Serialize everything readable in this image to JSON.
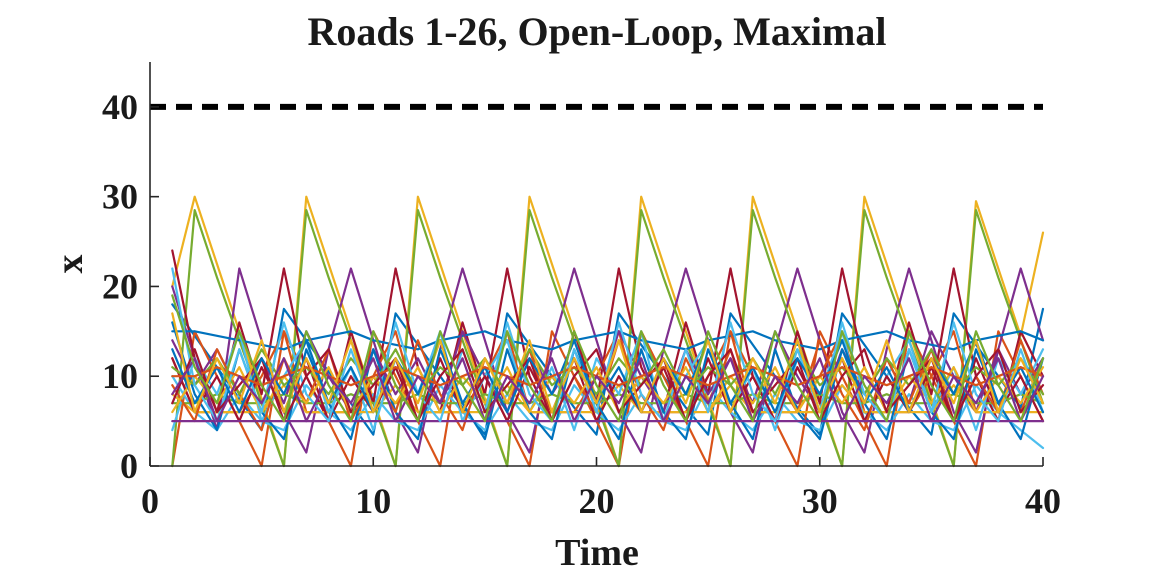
{
  "chart_data": {
    "type": "line",
    "title": "Roads 1-26, Open-Loop, Maximal",
    "xlabel": "Time",
    "ylabel": "x",
    "xlim": [
      0,
      40
    ],
    "ylim": [
      0,
      45
    ],
    "xticks": [
      0,
      10,
      20,
      30,
      40
    ],
    "yticks": [
      0,
      10,
      20,
      30,
      40
    ],
    "grid": false,
    "legend": "none",
    "threshold": {
      "y": 40,
      "x": [
        0,
        40
      ],
      "color": "#000000",
      "style": "dashed"
    },
    "palette": [
      "#0072BD",
      "#D95319",
      "#EDB120",
      "#7E2F8E",
      "#77AC30",
      "#4DBEEE",
      "#A2142F"
    ],
    "x": [
      1,
      2,
      3,
      4,
      5,
      6,
      7,
      8,
      9,
      10,
      11,
      12,
      13,
      14,
      15,
      16,
      17,
      18,
      19,
      20,
      21,
      22,
      23,
      24,
      25,
      26,
      27,
      28,
      29,
      30,
      31,
      32,
      33,
      34,
      35,
      36,
      37,
      38,
      39,
      40
    ],
    "series": [
      {
        "values": [
          18,
          14.5,
          11,
          7.5,
          4,
          17.5,
          14,
          10.5,
          7,
          3.5,
          17,
          13.5,
          10,
          6.5,
          3.5,
          17,
          13.5,
          10,
          6.5,
          3.5,
          17,
          13.5,
          10,
          6.5,
          3.5,
          17,
          13.5,
          10,
          6.5,
          3.5,
          17,
          13.5,
          10,
          6.5,
          3.5,
          17,
          13.5,
          10,
          6.5,
          17.5
        ]
      },
      {
        "values": [
          0,
          15,
          10,
          5,
          0,
          15,
          10,
          5,
          0,
          15,
          10,
          5,
          0,
          15,
          10,
          5,
          0,
          15,
          10,
          5,
          0,
          15,
          10,
          5,
          0,
          15,
          10,
          5,
          0,
          15,
          10,
          5,
          0,
          15,
          10,
          5,
          0,
          15,
          10,
          5
        ]
      },
      {
        "values": [
          20,
          30,
          22.5,
          15,
          7.5,
          0,
          30,
          22.5,
          15,
          7.5,
          0,
          30,
          22.5,
          15,
          7.5,
          0,
          30,
          22.5,
          15,
          7.5,
          0,
          30,
          22.5,
          15,
          7.5,
          0,
          30,
          22.5,
          15,
          7.5,
          0,
          30,
          22.5,
          15,
          7.5,
          0,
          29.5,
          22,
          14.5,
          26
        ]
      },
      {
        "values": [
          20,
          12,
          4,
          22,
          14,
          6,
          1.5,
          13,
          22,
          14,
          6,
          1.5,
          13,
          22,
          14,
          6,
          1.5,
          13,
          22,
          14,
          6,
          1.5,
          13,
          22,
          14,
          6,
          1.5,
          13,
          22,
          14,
          6,
          1.5,
          13,
          22,
          14,
          6,
          1.5,
          13,
          22,
          14
        ]
      },
      {
        "values": [
          0,
          28.5,
          21,
          14,
          7,
          0,
          28.5,
          21,
          14,
          7,
          0,
          28.5,
          21,
          14,
          7,
          0,
          28.5,
          21,
          14,
          7,
          0,
          28.5,
          21,
          14,
          7,
          0,
          28.5,
          21,
          14,
          7,
          0,
          28.5,
          21,
          14,
          7,
          0,
          28.5,
          21,
          14,
          7
        ]
      },
      {
        "values": [
          10,
          6,
          4,
          8,
          5,
          4,
          9,
          6,
          4,
          8,
          5,
          4,
          9,
          6,
          4,
          8,
          5,
          4,
          9,
          6,
          4,
          8,
          5,
          4,
          9,
          6,
          4,
          8,
          5,
          4,
          9,
          6,
          4,
          8,
          5,
          4,
          9,
          6,
          4,
          2
        ]
      },
      {
        "values": [
          24,
          12,
          6,
          16,
          8,
          22,
          10,
          5,
          15,
          7,
          22,
          11,
          6,
          16,
          8,
          22,
          10,
          5,
          15,
          7,
          22,
          11,
          6,
          16,
          8,
          22,
          10,
          5,
          15,
          7,
          22,
          11,
          6,
          16,
          8,
          22,
          10,
          5,
          15,
          10
        ]
      },
      {
        "values": [
          15,
          15,
          14.5,
          14,
          13.5,
          13,
          14,
          14.5,
          15,
          14,
          13.5,
          13,
          14,
          14.5,
          15,
          14,
          13.5,
          13,
          14,
          14.5,
          15,
          14,
          13.5,
          13,
          14,
          14.5,
          15,
          14,
          13.5,
          13,
          14,
          14.5,
          15,
          14,
          13.5,
          13,
          14,
          14.5,
          15,
          14
        ]
      },
      {
        "values": [
          12,
          6,
          6,
          6,
          10,
          15,
          6,
          6,
          6,
          10,
          15,
          6,
          6,
          6,
          10,
          15,
          6,
          6,
          6,
          10,
          15,
          6,
          6,
          6,
          10,
          15,
          6,
          6,
          6,
          10,
          15,
          6,
          6,
          6,
          10,
          15,
          6,
          6,
          6,
          12
        ]
      },
      {
        "values": [
          8,
          6,
          6,
          6,
          6,
          9,
          6,
          6,
          6,
          6,
          9,
          6,
          6,
          6,
          6,
          9,
          6,
          6,
          6,
          6,
          9,
          6,
          6,
          6,
          6,
          9,
          6,
          6,
          6,
          6,
          9,
          6,
          6,
          6,
          6,
          9,
          6,
          6,
          6,
          6
        ]
      },
      {
        "values": [
          14,
          9,
          13,
          8,
          12,
          7,
          15,
          10,
          6,
          13,
          8,
          12,
          7,
          15,
          10,
          6,
          13,
          8,
          12,
          7,
          15,
          10,
          6,
          13,
          8,
          12,
          7,
          15,
          10,
          6,
          13,
          8,
          12,
          7,
          15,
          10,
          6,
          13,
          8,
          12
        ]
      },
      {
        "values": [
          7,
          7,
          8,
          7,
          7,
          8,
          7,
          7,
          8,
          7,
          7,
          8,
          7,
          7,
          8,
          7,
          7,
          8,
          7,
          7,
          8,
          7,
          7,
          8,
          7,
          7,
          8,
          7,
          7,
          8,
          7,
          7,
          8,
          7,
          7,
          8,
          7,
          7,
          8,
          7
        ]
      },
      {
        "values": [
          4,
          12,
          8,
          15,
          5,
          10,
          14,
          6,
          11,
          4,
          12,
          8,
          15,
          5,
          10,
          14,
          6,
          11,
          4,
          12,
          8,
          15,
          5,
          10,
          14,
          6,
          11,
          4,
          12,
          8,
          15,
          5,
          10,
          14,
          6,
          11,
          4,
          12,
          8,
          13
        ]
      },
      {
        "values": [
          12,
          6,
          10,
          5,
          11,
          6,
          12,
          5,
          10,
          6,
          11,
          5,
          12,
          6,
          10,
          5,
          11,
          6,
          12,
          5,
          10,
          6,
          11,
          5,
          12,
          6,
          10,
          5,
          11,
          6,
          12,
          5,
          10,
          6,
          11,
          5,
          12,
          6,
          10,
          5
        ]
      },
      {
        "values": [
          16,
          8,
          4,
          13,
          6,
          3,
          13,
          7,
          3,
          13,
          6,
          3,
          13,
          7,
          3,
          13,
          6,
          3,
          13,
          7,
          3,
          13,
          6,
          3,
          13,
          7,
          3,
          13,
          6,
          3,
          13,
          7,
          3,
          13,
          6,
          3,
          13,
          7,
          3,
          12
        ]
      },
      {
        "values": [
          9,
          5,
          13,
          8,
          4,
          12,
          7,
          13,
          5,
          10,
          6,
          14,
          8,
          4,
          12,
          7,
          13,
          5,
          10,
          6,
          14,
          8,
          4,
          12,
          7,
          13,
          5,
          10,
          6,
          14,
          8,
          4,
          12,
          7,
          13,
          5,
          10,
          6,
          14,
          8
        ]
      },
      {
        "values": [
          6,
          10,
          7,
          11,
          6,
          10,
          7,
          11,
          6,
          10,
          7,
          11,
          6,
          10,
          7,
          11,
          6,
          10,
          7,
          11,
          6,
          10,
          7,
          11,
          6,
          10,
          7,
          11,
          6,
          10,
          7,
          11,
          6,
          10,
          7,
          11,
          6,
          10,
          7,
          11
        ]
      },
      {
        "values": [
          5,
          5,
          5,
          5,
          5,
          5,
          5,
          5,
          5,
          5,
          5,
          5,
          5,
          5,
          5,
          5,
          5,
          5,
          5,
          5,
          5,
          5,
          5,
          5,
          5,
          5,
          5,
          5,
          5,
          5,
          5,
          5,
          5,
          5,
          5,
          5,
          5,
          5,
          5,
          5
        ]
      },
      {
        "values": [
          11,
          9,
          12,
          8,
          13,
          9,
          11,
          8,
          12,
          9,
          13,
          8,
          11,
          9,
          12,
          8,
          13,
          9,
          11,
          8,
          12,
          9,
          13,
          8,
          11,
          9,
          12,
          8,
          13,
          9,
          11,
          8,
          12,
          9,
          13,
          8,
          11,
          9,
          12,
          8
        ]
      },
      {
        "values": [
          22,
          9,
          5,
          13,
          6,
          16,
          8,
          5,
          13,
          6,
          16,
          8,
          5,
          13,
          6,
          16,
          8,
          5,
          13,
          6,
          16,
          8,
          5,
          13,
          6,
          16,
          8,
          5,
          13,
          6,
          16,
          8,
          5,
          13,
          6,
          16,
          8,
          5,
          13,
          6
        ]
      },
      {
        "values": [
          7,
          13,
          6,
          9,
          12,
          5,
          10,
          13,
          6,
          9,
          12,
          5,
          10,
          13,
          6,
          9,
          12,
          5,
          10,
          13,
          6,
          9,
          12,
          5,
          10,
          13,
          6,
          9,
          12,
          5,
          10,
          13,
          6,
          9,
          12,
          5,
          10,
          13,
          6,
          9
        ]
      },
      {
        "values": [
          13,
          7,
          11,
          6,
          12,
          8,
          14,
          7,
          11,
          6,
          12,
          8,
          14,
          7,
          11,
          6,
          12,
          8,
          14,
          7,
          11,
          6,
          12,
          8,
          14,
          7,
          11,
          6,
          12,
          8,
          14,
          7,
          11,
          6,
          12,
          8,
          14,
          7,
          11,
          6
        ]
      },
      {
        "values": [
          10,
          10,
          11,
          10,
          9,
          10,
          11,
          10,
          9,
          10,
          11,
          10,
          9,
          10,
          11,
          10,
          9,
          10,
          11,
          10,
          9,
          10,
          11,
          10,
          9,
          10,
          11,
          10,
          9,
          10,
          11,
          10,
          9,
          10,
          11,
          10,
          9,
          10,
          11,
          10
        ]
      },
      {
        "values": [
          17,
          6,
          12,
          7,
          14,
          6,
          12,
          7,
          14,
          6,
          12,
          7,
          14,
          6,
          12,
          7,
          14,
          6,
          12,
          7,
          14,
          6,
          12,
          7,
          14,
          6,
          12,
          7,
          14,
          6,
          12,
          7,
          14,
          6,
          12,
          7,
          14,
          6,
          12,
          7
        ]
      },
      {
        "values": [
          8,
          12,
          5,
          10,
          7,
          12,
          5,
          10,
          7,
          12,
          5,
          10,
          7,
          12,
          5,
          10,
          7,
          12,
          5,
          10,
          7,
          12,
          5,
          10,
          7,
          12,
          5,
          10,
          7,
          12,
          5,
          10,
          7,
          12,
          5,
          10,
          7,
          12,
          5,
          10
        ]
      },
      {
        "values": [
          19,
          11,
          7,
          15,
          9,
          5,
          15,
          9,
          5,
          15,
          9,
          5,
          15,
          9,
          5,
          15,
          9,
          5,
          15,
          9,
          5,
          15,
          9,
          5,
          15,
          9,
          5,
          15,
          9,
          5,
          15,
          9,
          5,
          15,
          9,
          5,
          15,
          9,
          5,
          12
        ]
      }
    ]
  }
}
